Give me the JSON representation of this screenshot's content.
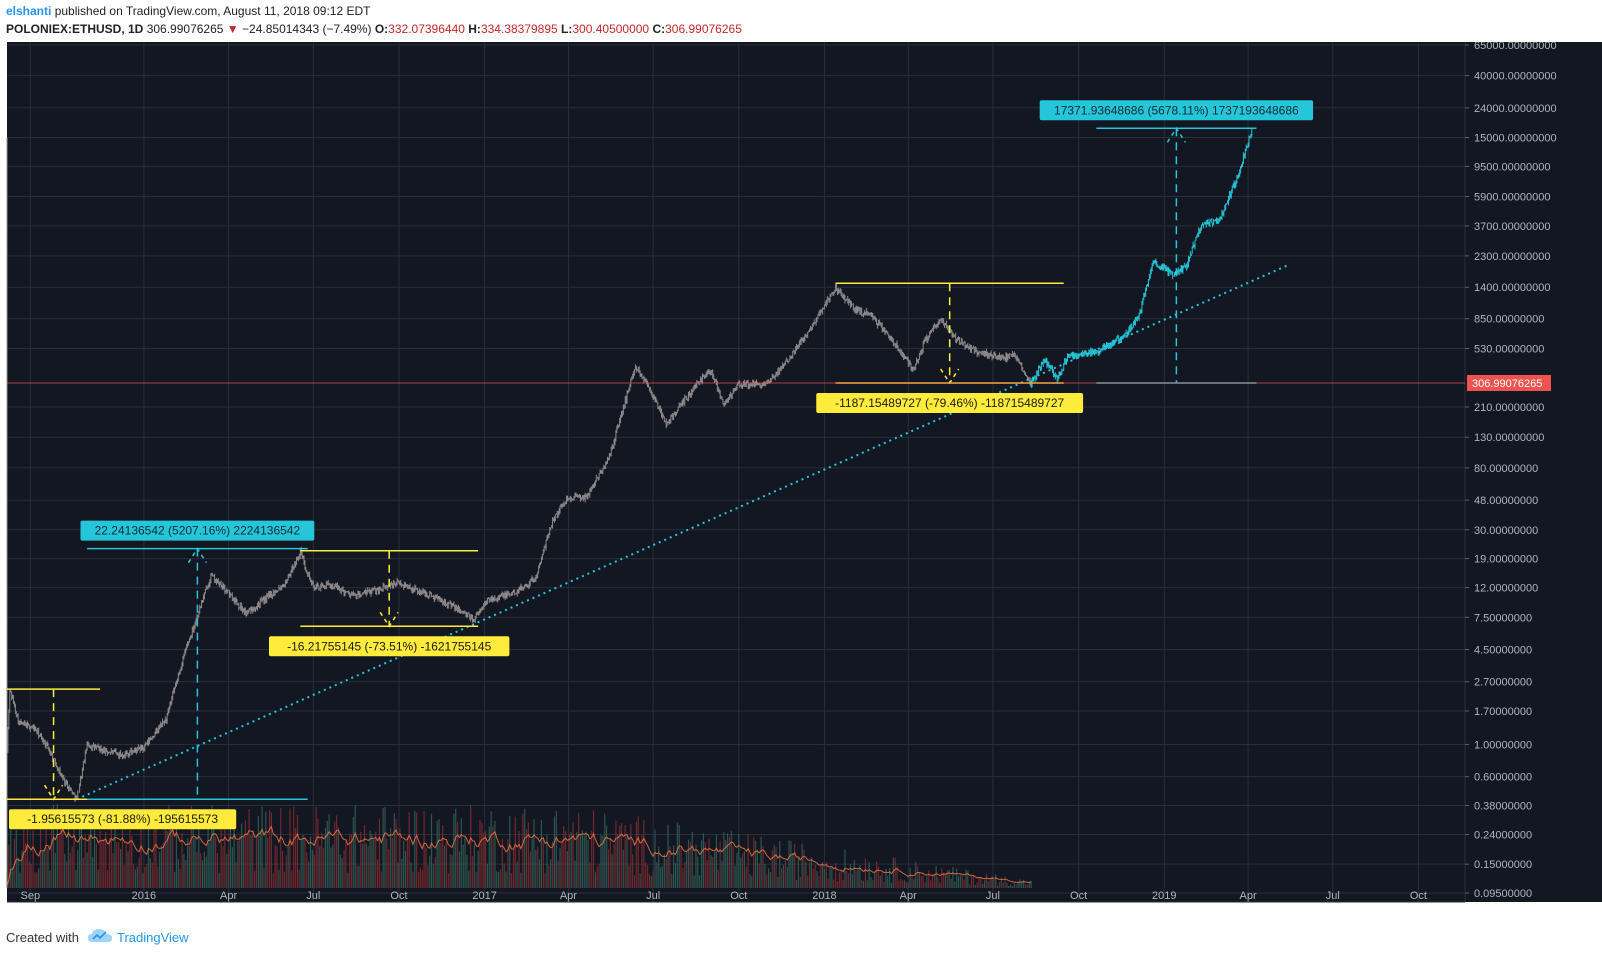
{
  "header": {
    "user": "elshanti",
    "published": " published on TradingView.com, August 11, 2018 09:12 EDT",
    "symbol": "POLONIEX:ETHUSD, 1D",
    "last": "306.99076265",
    "change": "−24.85014343 (−7.49%)",
    "o_label": "O:",
    "o_val": "332.07396440",
    "h_label": "H:",
    "h_val": "334.38379895",
    "l_label": "L:",
    "l_val": "300.40500000",
    "c_label": "C:",
    "c_val": "306.99076265"
  },
  "footer": {
    "created_with": "Created with",
    "brand": "TradingView"
  },
  "colors": {
    "background": "#131722",
    "grid": "#2a2e39",
    "candle_grey": "#8f8a8c",
    "projection_cyan": "#26c6da",
    "yellow": "#ffeb3b",
    "trend": "#26c6da",
    "price_line": "#ef5350",
    "volume_ma": "#ff7a45"
  },
  "chart_data": {
    "type": "candlestick",
    "scale": "log",
    "symbol": "POLONIEX:ETHUSD",
    "interval": "1D",
    "y_ticks": [
      "65000.00000000",
      "40000.00000000",
      "24000.00000000",
      "15000.00000000",
      "9500.00000000",
      "5900.00000000",
      "3700.00000000",
      "2300.00000000",
      "1400.00000000",
      "850.00000000",
      "530.00000000",
      "210.00000000",
      "130.00000000",
      "80.00000000",
      "48.00000000",
      "30.00000000",
      "19.00000000",
      "12.00000000",
      "7.50000000",
      "4.50000000",
      "2.70000000",
      "1.70000000",
      "1.00000000",
      "0.60000000",
      "0.38000000",
      "0.24000000",
      "0.15000000",
      "0.09500000"
    ],
    "y_tick_values": [
      65000,
      40000,
      24000,
      15000,
      9500,
      5900,
      3700,
      2300,
      1400,
      850,
      530,
      210,
      130,
      80,
      48,
      30,
      19,
      12,
      7.5,
      4.5,
      2.7,
      1.7,
      1.0,
      0.6,
      0.38,
      0.24,
      0.15,
      0.095
    ],
    "x_ticks": [
      "Sep",
      "2016",
      "Apr",
      "Jul",
      "Oct",
      "2017",
      "Apr",
      "Jul",
      "Oct",
      "2018",
      "Apr",
      "Jul",
      "Oct",
      "2019",
      "Apr",
      "Jul",
      "Oct"
    ],
    "x_tick_dates": [
      "2015-09-01",
      "2016-01-01",
      "2016-04-01",
      "2016-07-01",
      "2016-10-01",
      "2017-01-01",
      "2017-04-01",
      "2017-07-01",
      "2017-10-01",
      "2018-01-01",
      "2018-04-01",
      "2018-07-01",
      "2018-10-01",
      "2019-01-01",
      "2019-04-01",
      "2019-07-01",
      "2019-10-01"
    ],
    "x_range": [
      "2015-08-07",
      "2019-11-20"
    ],
    "current_price": {
      "value": 306.99076265,
      "label": "306.99076265"
    },
    "price_path": [
      {
        "date": "2015-08-07",
        "value": 0.9
      },
      {
        "date": "2015-08-10",
        "value": 2.4
      },
      {
        "date": "2015-08-20",
        "value": 1.4
      },
      {
        "date": "2015-09-05",
        "value": 1.3
      },
      {
        "date": "2015-09-20",
        "value": 0.95
      },
      {
        "date": "2015-10-05",
        "value": 0.6
      },
      {
        "date": "2015-10-21",
        "value": 0.42
      },
      {
        "date": "2015-11-01",
        "value": 1.0
      },
      {
        "date": "2015-11-20",
        "value": 0.9
      },
      {
        "date": "2015-12-10",
        "value": 0.85
      },
      {
        "date": "2016-01-01",
        "value": 0.95
      },
      {
        "date": "2016-01-25",
        "value": 1.5
      },
      {
        "date": "2016-02-15",
        "value": 4.5
      },
      {
        "date": "2016-03-13",
        "value": 14.5
      },
      {
        "date": "2016-04-01",
        "value": 11
      },
      {
        "date": "2016-04-20",
        "value": 8
      },
      {
        "date": "2016-05-10",
        "value": 10
      },
      {
        "date": "2016-06-01",
        "value": 13
      },
      {
        "date": "2016-06-17",
        "value": 21
      },
      {
        "date": "2016-07-01",
        "value": 12
      },
      {
        "date": "2016-07-20",
        "value": 12.5
      },
      {
        "date": "2016-08-15",
        "value": 10.5
      },
      {
        "date": "2016-09-15",
        "value": 12
      },
      {
        "date": "2016-10-01",
        "value": 13
      },
      {
        "date": "2016-10-20",
        "value": 11.5
      },
      {
        "date": "2016-11-15",
        "value": 10
      },
      {
        "date": "2016-12-10",
        "value": 8
      },
      {
        "date": "2016-12-20",
        "value": 7.2
      },
      {
        "date": "2017-01-05",
        "value": 10
      },
      {
        "date": "2017-02-01",
        "value": 11
      },
      {
        "date": "2017-02-25",
        "value": 14
      },
      {
        "date": "2017-03-15",
        "value": 35
      },
      {
        "date": "2017-03-31",
        "value": 50
      },
      {
        "date": "2017-04-20",
        "value": 50
      },
      {
        "date": "2017-05-15",
        "value": 95
      },
      {
        "date": "2017-06-01",
        "value": 230
      },
      {
        "date": "2017-06-12",
        "value": 400
      },
      {
        "date": "2017-06-25",
        "value": 300
      },
      {
        "date": "2017-07-15",
        "value": 160
      },
      {
        "date": "2017-08-01",
        "value": 220
      },
      {
        "date": "2017-08-20",
        "value": 320
      },
      {
        "date": "2017-09-01",
        "value": 380
      },
      {
        "date": "2017-09-15",
        "value": 220
      },
      {
        "date": "2017-10-01",
        "value": 300
      },
      {
        "date": "2017-11-01",
        "value": 300
      },
      {
        "date": "2017-11-25",
        "value": 470
      },
      {
        "date": "2017-12-15",
        "value": 700
      },
      {
        "date": "2018-01-13",
        "value": 1400
      },
      {
        "date": "2018-02-01",
        "value": 1000
      },
      {
        "date": "2018-02-20",
        "value": 900
      },
      {
        "date": "2018-03-15",
        "value": 600
      },
      {
        "date": "2018-04-07",
        "value": 380
      },
      {
        "date": "2018-04-20",
        "value": 620
      },
      {
        "date": "2018-05-06",
        "value": 830
      },
      {
        "date": "2018-05-25",
        "value": 600
      },
      {
        "date": "2018-06-15",
        "value": 500
      },
      {
        "date": "2018-07-10",
        "value": 460
      },
      {
        "date": "2018-07-25",
        "value": 470
      },
      {
        "date": "2018-08-11",
        "value": 307
      }
    ],
    "projection_path": [
      {
        "date": "2018-08-11",
        "value": 307
      },
      {
        "date": "2018-08-25",
        "value": 450
      },
      {
        "date": "2018-09-08",
        "value": 330
      },
      {
        "date": "2018-09-20",
        "value": 470
      },
      {
        "date": "2018-10-20",
        "value": 500
      },
      {
        "date": "2018-11-20",
        "value": 650
      },
      {
        "date": "2018-12-05",
        "value": 900
      },
      {
        "date": "2018-12-20",
        "value": 2100
      },
      {
        "date": "2019-01-10",
        "value": 1700
      },
      {
        "date": "2019-01-25",
        "value": 2000
      },
      {
        "date": "2019-02-10",
        "value": 3800
      },
      {
        "date": "2019-03-01",
        "value": 4000
      },
      {
        "date": "2019-03-20",
        "value": 7800
      },
      {
        "date": "2019-04-05",
        "value": 17000
      }
    ],
    "trendline": [
      {
        "date": "2015-10-21",
        "value": 0.42
      },
      {
        "date": "2019-05-15",
        "value": 2000
      }
    ],
    "measurements": [
      {
        "label": "-1.95615573 (-81.88%) -195615573",
        "color": "#ffeb3b",
        "text_color": "#1a1a1a",
        "start": "2015-08-07",
        "end": "2015-11-15",
        "top": 2.4,
        "bottom": 0.42,
        "direction": "down"
      },
      {
        "label": "22.24136542 (5207.16%) 2224136542",
        "color": "#26c6da",
        "text_color": "#0c2c33",
        "start": "2015-11-01",
        "end": "2016-06-25",
        "top": 22.24,
        "bottom": 0.42,
        "direction": "up"
      },
      {
        "label": "-16.21755145 (-73.51%) -1621755145",
        "color": "#ffeb3b",
        "text_color": "#1a1a1a",
        "start": "2016-06-17",
        "end": "2016-12-25",
        "top": 21.5,
        "bottom": 6.5,
        "direction": "down"
      },
      {
        "label": "-1187.15489727 (-79.46%) -118715489727",
        "color": "#ffeb3b",
        "text_color": "#1a1a1a",
        "start": "2018-01-13",
        "end": "2018-09-15",
        "top": 1490,
        "bottom": 306.99,
        "direction": "down"
      },
      {
        "label": "17371.93648686 (5678.11%) 1737193648686",
        "color": "#26c6da",
        "text_color": "#0c2c33",
        "start": "2018-10-20",
        "end": "2019-04-10",
        "top": 17371,
        "bottom": 306.99,
        "direction": "up"
      }
    ],
    "legend": "none",
    "grid": true
  }
}
